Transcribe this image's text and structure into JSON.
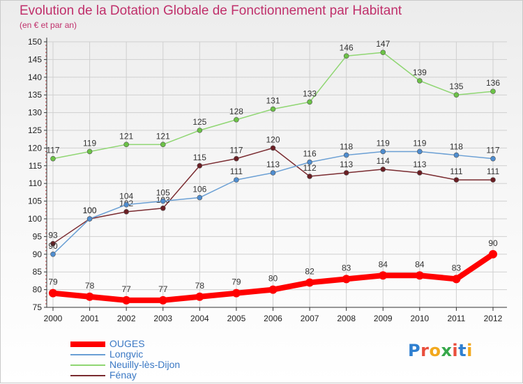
{
  "header": {
    "title": "Evolution de la Dotation Globale de Fonctionnement par Habitant",
    "subtitle": "(en € et par an)"
  },
  "logo": {
    "text": "Proxiti",
    "colors": [
      "#2e7fd0",
      "#e94e3c",
      "#f2a81d",
      "#36a84a",
      "#e94e3c",
      "#2e7fd0",
      "#f2a81d"
    ]
  },
  "colors": {
    "text": "#c0306b",
    "axis": "#333333",
    "grid": "#d0d0d0",
    "tick_label": "#222222",
    "data_label": "#333333"
  },
  "chart_data": {
    "type": "line",
    "title": "Evolution de la Dotation Globale de Fonctionnement par Habitant",
    "subtitle": "(en € et par an)",
    "x": [
      "2000",
      "2001",
      "2002",
      "2003",
      "2004",
      "2005",
      "2006",
      "2007",
      "2008",
      "2009",
      "2010",
      "2011",
      "2012"
    ],
    "ylim": [
      75,
      150
    ],
    "yticks": [
      75,
      80,
      85,
      90,
      95,
      100,
      105,
      110,
      115,
      120,
      125,
      130,
      135,
      140,
      145,
      150
    ],
    "grid": true,
    "legend_position": "bottom-left",
    "series": [
      {
        "name": "OUGES",
        "color": "#ff0000",
        "width": 8,
        "marker_fill": "#ff0000",
        "values": [
          79,
          78,
          77,
          77,
          78,
          79,
          80,
          82,
          83,
          84,
          84,
          83,
          90
        ]
      },
      {
        "name": "Longvic",
        "color": "#6a9fd4",
        "width": 1.5,
        "marker_fill": "#4f8dcf",
        "values": [
          90,
          100,
          104,
          105,
          106,
          111,
          113,
          116,
          118,
          119,
          119,
          118,
          117
        ]
      },
      {
        "name": "Neuilly-lès-Dijon",
        "color": "#8fd672",
        "width": 1.5,
        "marker_fill": "#6cc247",
        "values": [
          117,
          119,
          121,
          121,
          125,
          128,
          131,
          133,
          146,
          147,
          139,
          135,
          136
        ]
      },
      {
        "name": "Fénay",
        "color": "#7a2b30",
        "width": 1.5,
        "marker_fill": "#6b1f24",
        "values": [
          93,
          100,
          102,
          103,
          115,
          117,
          120,
          112,
          113,
          114,
          113,
          111,
          111
        ]
      }
    ]
  }
}
